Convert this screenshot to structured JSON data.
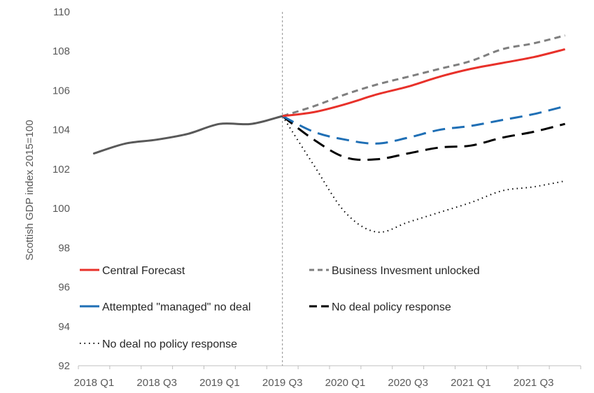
{
  "chart_data": {
    "type": "line",
    "title": "",
    "xlabel": "",
    "ylabel": "Scottish GDP index 2015=100",
    "ylim": [
      92,
      110
    ],
    "y_ticks": [
      92,
      94,
      96,
      98,
      100,
      102,
      104,
      106,
      108,
      110
    ],
    "grid": false,
    "legend_position": "bottom-left",
    "x_tick_labels": [
      "2018 Q1",
      "2018 Q3",
      "2019 Q1",
      "2019 Q3",
      "2020 Q1",
      "2020 Q3",
      "2021 Q1",
      "2021 Q3"
    ],
    "x_tick_positions": [
      0,
      2,
      4,
      6,
      8,
      10,
      12,
      14
    ],
    "x_range": [
      -0.5,
      15.5
    ],
    "reference_line_x": 6,
    "history": {
      "x": [
        0,
        1,
        2,
        3,
        4,
        5,
        6
      ],
      "values": [
        102.8,
        103.3,
        103.5,
        103.8,
        104.3,
        104.3,
        104.7
      ],
      "color": "#595959"
    },
    "series": [
      {
        "name": "Central Forecast",
        "x": [
          6,
          7,
          8,
          9,
          10,
          11,
          12,
          13,
          14,
          15
        ],
        "values": [
          104.7,
          104.9,
          105.3,
          105.8,
          106.2,
          106.7,
          107.1,
          107.4,
          107.7,
          108.1
        ],
        "color": "#E8312A",
        "dash": "solid"
      },
      {
        "name": "Business Invesment unlocked",
        "x": [
          6,
          7,
          8,
          9,
          10,
          11,
          12,
          13,
          14,
          15
        ],
        "values": [
          104.7,
          105.2,
          105.8,
          106.3,
          106.7,
          107.1,
          107.5,
          108.1,
          108.4,
          108.8
        ],
        "color": "#7F7F7F",
        "dash": "medium"
      },
      {
        "name": "Attempted \"managed\" no deal",
        "x": [
          6,
          7,
          8,
          9,
          10,
          11,
          12,
          13,
          14,
          15
        ],
        "values": [
          104.7,
          103.9,
          103.5,
          103.3,
          103.6,
          104.0,
          104.2,
          104.5,
          104.8,
          105.2
        ],
        "color": "#1F6FB5",
        "dash": "long"
      },
      {
        "name": "No deal policy response",
        "x": [
          6,
          7,
          8,
          9,
          10,
          11,
          12,
          13,
          14,
          15
        ],
        "values": [
          104.7,
          103.5,
          102.6,
          102.5,
          102.8,
          103.1,
          103.2,
          103.6,
          103.9,
          104.3
        ],
        "color": "#000000",
        "dash": "long"
      },
      {
        "name": "No deal no policy response",
        "x": [
          6,
          7,
          8,
          9,
          10,
          11,
          12,
          13,
          14,
          15
        ],
        "values": [
          104.7,
          102.2,
          99.8,
          98.8,
          99.3,
          99.8,
          100.3,
          100.9,
          101.1,
          101.4
        ],
        "color": "#000000",
        "dash": "dotted"
      }
    ]
  }
}
